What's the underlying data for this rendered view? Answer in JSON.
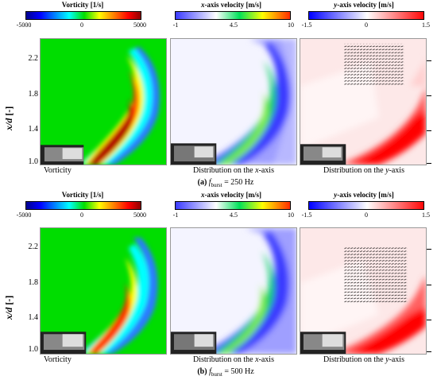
{
  "colorbars": {
    "vorticity": {
      "title": "Vorticity [1/s]",
      "ticks": [
        "-5000",
        "0",
        "5000"
      ]
    },
    "xvel": {
      "title_prefix": "x",
      "title_rest": "-axis velocity [m/s]",
      "ticks": [
        "-1",
        "4.5",
        "10"
      ]
    },
    "yvel": {
      "title_prefix": "y",
      "title_rest": "-axis velocity [m/s]",
      "ticks": [
        "-1.5",
        "0",
        "1.5"
      ]
    }
  },
  "axis": {
    "ylabel_italic": "x/d",
    "ylabel_rest": " [-]",
    "ticks": [
      "2.2",
      "1.8",
      "1.4",
      "1.0"
    ]
  },
  "panel_titles": {
    "vorticity": "Vorticity",
    "xaxis_prefix": "Distribution on the ",
    "xaxis_italic": "x",
    "xaxis_suffix": "-axis",
    "yaxis_prefix": "Distribution on the ",
    "yaxis_italic": "y",
    "yaxis_suffix": "-axis"
  },
  "captions": {
    "a": {
      "tag": "(a)",
      "f": "f",
      "sub": "burst",
      "rest": " = 250 Hz"
    },
    "b": {
      "tag": "(b)",
      "f": "f",
      "sub": "burst",
      "rest": " = 500 Hz"
    }
  },
  "chart_data": [
    {
      "type": "heatmap",
      "caption": "(a) fburst = 250 Hz",
      "panels": [
        {
          "title": "Vorticity",
          "colorbar_range": [
            -5000,
            5000
          ],
          "colorbar": "Vorticity [1/s]"
        },
        {
          "title": "Distribution on the x-axis",
          "colorbar_range": [
            -1,
            10
          ],
          "colorbar": "x-axis velocity [m/s]"
        },
        {
          "title": "Distribution on the y-axis",
          "colorbar_range": [
            -1.5,
            1.5
          ],
          "colorbar": "y-axis velocity [m/s]"
        }
      ],
      "ylabel": "x/d [-]",
      "yticks": [
        1.0,
        1.4,
        1.8,
        2.2
      ]
    },
    {
      "type": "heatmap",
      "caption": "(b) fburst = 500 Hz",
      "panels": [
        {
          "title": "Vorticity",
          "colorbar_range": [
            -5000,
            5000
          ],
          "colorbar": "Vorticity [1/s]"
        },
        {
          "title": "Distribution on the x-axis",
          "colorbar_range": [
            -1,
            10
          ],
          "colorbar": "x-axis velocity [m/s]"
        },
        {
          "title": "Distribution on the y-axis",
          "colorbar_range": [
            -1.5,
            1.5
          ],
          "colorbar": "y-axis velocity [m/s]"
        }
      ],
      "ylabel": "x/d [-]",
      "yticks": [
        1.0,
        1.4,
        1.8,
        2.2
      ]
    }
  ]
}
